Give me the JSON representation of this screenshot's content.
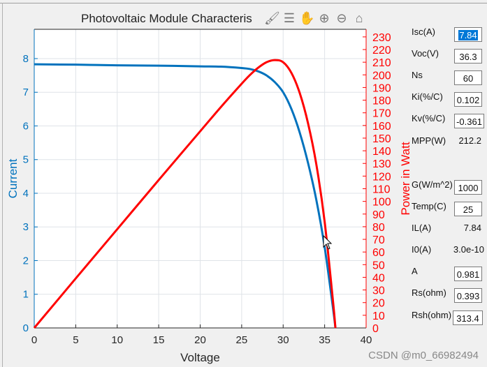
{
  "window": {
    "title": "Photovoltaic Module Characteris"
  },
  "toolbar": [
    {
      "name": "brush-icon",
      "glyph": "🖌"
    },
    {
      "name": "legend-icon",
      "glyph": "☰"
    },
    {
      "name": "pan-hand-icon",
      "glyph": "✋"
    },
    {
      "name": "zoom-in-icon",
      "glyph": "⊕"
    },
    {
      "name": "zoom-out-icon",
      "glyph": "⊖"
    },
    {
      "name": "home-icon",
      "glyph": "⌂"
    }
  ],
  "params": {
    "isc": {
      "label": "Isc(A)",
      "value": "7.84"
    },
    "voc": {
      "label": "Voc(V)",
      "value": "36.3"
    },
    "ns": {
      "label": "Ns",
      "value": "60"
    },
    "ki": {
      "label": "Ki(%/C)",
      "value": "0.102"
    },
    "kv": {
      "label": "Kv(%/C)",
      "value": "-0.361"
    },
    "mpp": {
      "label": "MPP(W)",
      "value": "212.2"
    },
    "g": {
      "label": "G(W/m^2)",
      "value": "1000"
    },
    "temp": {
      "label": "Temp(C)",
      "value": "25"
    },
    "il": {
      "label": "IL(A)",
      "value": "7.84"
    },
    "i0": {
      "label": "I0(A)",
      "value": "3.0e-10"
    },
    "a": {
      "label": "A",
      "value": "0.981"
    },
    "rs": {
      "label": "Rs(ohm)",
      "value": "0.393"
    },
    "rsh": {
      "label": "Rsh(ohm)",
      "value": "313.4"
    }
  },
  "watermark": "CSDN @m0_66982494",
  "chart_data": {
    "type": "line",
    "title": "Photovoltaic Module Characteris",
    "xlabel": "Voltage",
    "ylabel": "Current",
    "y2label": "Power in Watt",
    "xlim": [
      0,
      40
    ],
    "ylim": [
      0,
      8.87
    ],
    "y2lim": [
      0,
      236
    ],
    "xticks": [
      0,
      5,
      10,
      15,
      20,
      25,
      30,
      35,
      40
    ],
    "yticks": [
      0,
      1,
      2,
      3,
      4,
      5,
      6,
      7,
      8
    ],
    "y2ticks": [
      0,
      10,
      20,
      30,
      40,
      50,
      60,
      70,
      80,
      90,
      100,
      110,
      120,
      130,
      140,
      150,
      160,
      170,
      180,
      190,
      200,
      210,
      220,
      230
    ],
    "grid": true,
    "colors": {
      "current": "#0072bd",
      "power": "#ff0000"
    },
    "x": [
      0,
      5,
      10,
      15,
      20,
      22.5,
      25,
      26,
      27,
      28,
      29,
      30,
      31,
      32,
      33,
      34,
      35,
      36,
      36.3
    ],
    "series": [
      {
        "axis": "left",
        "values": [
          7.83,
          7.82,
          7.8,
          7.79,
          7.77,
          7.76,
          7.72,
          7.69,
          7.62,
          7.5,
          7.3,
          7.0,
          6.5,
          5.8,
          4.9,
          3.8,
          2.4,
          0.6,
          0
        ]
      },
      {
        "axis": "right",
        "values": [
          0,
          39.1,
          78,
          116.9,
          155.4,
          174.6,
          193,
          199.9,
          205.7,
          210,
          211.7,
          210,
          201.5,
          185.6,
          161.7,
          129.2,
          84,
          21.6,
          0
        ]
      }
    ]
  }
}
